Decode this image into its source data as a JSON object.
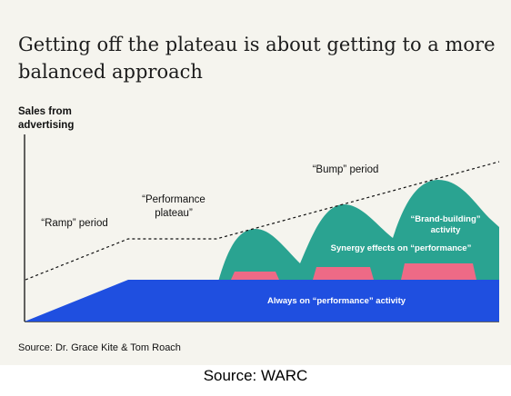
{
  "figure": {
    "title": "Getting off the plateau is about getting to a more balanced approach",
    "y_axis_label": "Sales from advertising",
    "labels": {
      "ramp": "“Ramp” period",
      "plateau": "“Performance plateau”",
      "bump": "“Bump” period",
      "brand_building": "“Brand-building” activity",
      "synergy": "Synergy effects on “performance”",
      "always_on": "Always on “performance” activity"
    },
    "source_inner": "Source: Dr. Grace Kite & Tom Roach"
  },
  "caption": "Source: WARC",
  "colors": {
    "background": "#f5f4ee",
    "performance_blue": "#1f4fe0",
    "brand_green": "#2aa391",
    "synergy_pink": "#ee6a86"
  }
}
